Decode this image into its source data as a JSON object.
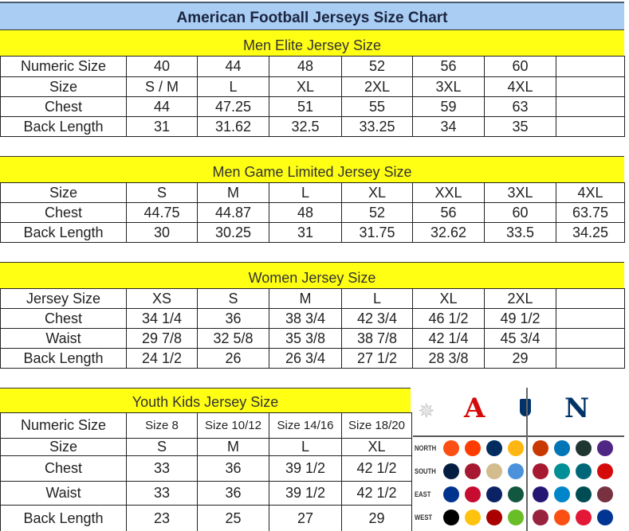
{
  "title": "American Football Jerseys Size Chart",
  "colors": {
    "title_band": "#a9cdf3",
    "section_band": "#ffff14"
  },
  "sections": [
    {
      "heading": "Men Elite Jersey Size",
      "rows": [
        [
          "Numeric Size",
          "40",
          "44",
          "48",
          "52",
          "56",
          "60",
          ""
        ],
        [
          "Size",
          "S / M",
          "L",
          "XL",
          "2XL",
          "3XL",
          "4XL",
          ""
        ],
        [
          "Chest",
          "44",
          "47.25",
          "51",
          "55",
          "59",
          "63",
          ""
        ],
        [
          "Back Length",
          "31",
          "31.62",
          "32.5",
          "33.25",
          "34",
          "35",
          ""
        ]
      ]
    },
    {
      "heading": "Men Game Limited Jersey Size",
      "rows": [
        [
          "Size",
          "S",
          "M",
          "L",
          "XL",
          "XXL",
          "3XL",
          "4XL"
        ],
        [
          "Chest",
          "44.75",
          "44.87",
          "48",
          "52",
          "56",
          "60",
          "63.75"
        ],
        [
          "Back Length",
          "30",
          "30.25",
          "31",
          "31.75",
          "32.62",
          "33.5",
          "34.25"
        ]
      ]
    },
    {
      "heading": "Women Jersey Size",
      "rows": [
        [
          "Jersey Size",
          "XS",
          "S",
          "M",
          "L",
          "XL",
          "2XL",
          ""
        ],
        [
          "Chest",
          "34 1/4",
          "36",
          "38 3/4",
          "42 3/4",
          "46 1/2",
          "49 1/2",
          ""
        ],
        [
          "Waist",
          "29 7/8",
          "32 5/8",
          "35 3/8",
          "38 7/8",
          "42 1/4",
          "45 3/4",
          ""
        ],
        [
          "Back Length",
          "24 1/2",
          "26",
          "26 3/4",
          "27 1/2",
          "28 3/8",
          "29",
          ""
        ]
      ]
    },
    {
      "heading": "Youth Kids Jersey Size",
      "rows": [
        [
          "Numeric Size",
          "Size 8",
          "Size 10/12",
          "Size 14/16",
          "Size 18/20"
        ],
        [
          "Size",
          "S",
          "M",
          "L",
          "XL"
        ],
        [
          "Chest",
          "33",
          "36",
          "39 1/2",
          "42 1/2"
        ],
        [
          "Waist",
          "33",
          "36",
          "39 1/2",
          "42 1/2"
        ],
        [
          "Back Length",
          "23",
          "25",
          "27",
          "29"
        ]
      ]
    }
  ],
  "logos": {
    "header": [
      "nfl-star-icon",
      "afc-logo",
      "nfl-shield-logo",
      "nfc-logo"
    ],
    "afc_letter": "A",
    "nfc_letter": "N",
    "divisions": [
      {
        "label": "NORTH",
        "afc": [
          "#fb4f14",
          "#ff3c00",
          "#002c5f",
          "#ffb612"
        ],
        "nfc": [
          "#c83803",
          "#0076b6",
          "#203731",
          "#4f2683"
        ]
      },
      {
        "label": "SOUTH",
        "afc": [
          "#041e42",
          "#a71930",
          "#d3bc8d",
          "#4b92db"
        ],
        "nfc": [
          "#a71930",
          "#008e97",
          "#006778",
          "#d50a0a"
        ]
      },
      {
        "label": "EAST",
        "afc": [
          "#00338d",
          "#c60c30",
          "#0b2265",
          "#125740"
        ],
        "nfc": [
          "#241773",
          "#0085ca",
          "#004c54",
          "#773141"
        ]
      },
      {
        "label": "WEST",
        "afc": [
          "#000000",
          "#ffc20e",
          "#aa0000",
          "#69be28"
        ],
        "nfc": [
          "#97233f",
          "#fb4f14",
          "#e31837",
          "#003594"
        ]
      }
    ]
  }
}
